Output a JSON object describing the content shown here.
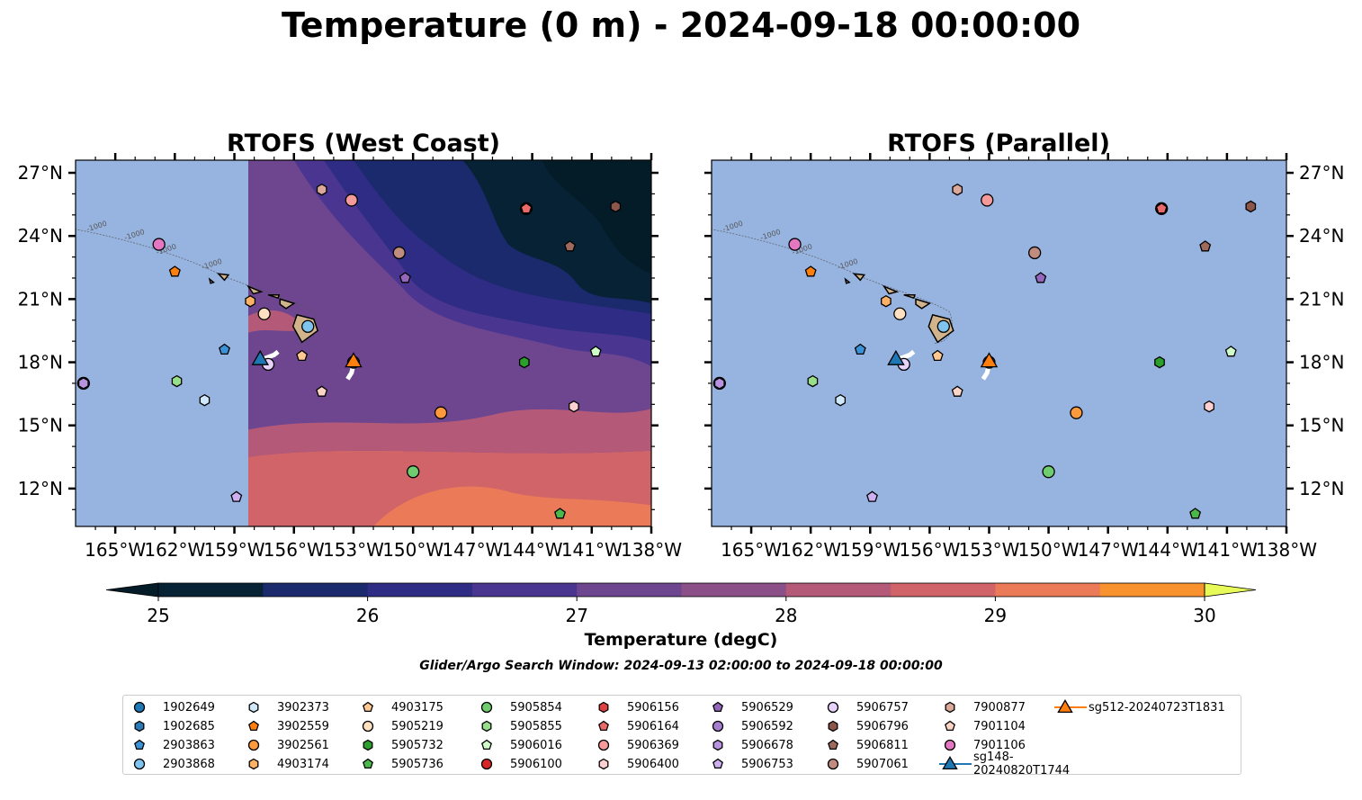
{
  "title": "Temperature (0 m) - 2024-09-18 00:00:00",
  "panels": [
    {
      "title": "RTOFS (West Coast)",
      "has_field": true
    },
    {
      "title": "RTOFS (Parallel)",
      "has_field": false
    }
  ],
  "x_ticks": [
    "165°W",
    "162°W",
    "159°W",
    "156°W",
    "153°W",
    "150°W",
    "147°W",
    "144°W",
    "141°W",
    "138°W"
  ],
  "y_ticks": [
    "27°N",
    "24°N",
    "21°N",
    "18°N",
    "15°N",
    "12°N"
  ],
  "colorbar": {
    "ticks": [
      "25",
      "26",
      "27",
      "28",
      "29",
      "30"
    ],
    "label": "Temperature (degC)",
    "levels": [
      25,
      25.5,
      26,
      26.5,
      27,
      27.5,
      28,
      28.5,
      29,
      29.5,
      30
    ],
    "colors": [
      "#062234",
      "#1a2a6c",
      "#2e2c84",
      "#4a3690",
      "#6e4690",
      "#8c5088",
      "#b45a78",
      "#d06468",
      "#ea7a58",
      "#f8922e",
      "#fbc240"
    ],
    "under_color": "#041c28",
    "over_color": "#e8fa5a"
  },
  "search_window": "Glider/Argo Search Window: 2024-09-13 02:00:00 to 2024-09-18 00:00:00",
  "contour_labels": [
    "-1000",
    "-1000",
    "-1000",
    "-1000"
  ],
  "chart_data": {
    "type": "map-scatter",
    "xlim": [
      -167.0,
      -138.0
    ],
    "ylim": [
      10.2,
      27.6
    ],
    "projection": "PlateCarree",
    "field": "Temperature (0 m)",
    "points": [
      {
        "id": "1902649",
        "lon": -153.0,
        "lat": 18.0
      },
      {
        "id": "1902685",
        "lon": -155.3,
        "lat": 19.7
      },
      {
        "id": "2903863",
        "lon": -159.5,
        "lat": 18.6
      },
      {
        "id": "2903868",
        "lon": -155.3,
        "lat": 19.7
      },
      {
        "id": "3902373",
        "lon": -160.5,
        "lat": 16.2
      },
      {
        "id": "3902559",
        "lon": -162.0,
        "lat": 22.3
      },
      {
        "id": "3902561",
        "lon": -148.6,
        "lat": 15.6
      },
      {
        "id": "4903174",
        "lon": -158.2,
        "lat": 20.9
      },
      {
        "id": "4903175",
        "lon": -155.6,
        "lat": 18.3
      },
      {
        "id": "5905219",
        "lon": -157.5,
        "lat": 20.3
      },
      {
        "id": "5905732",
        "lon": -144.4,
        "lat": 18.0
      },
      {
        "id": "5905736",
        "lon": -142.6,
        "lat": 10.8
      },
      {
        "id": "5905854",
        "lon": -150.0,
        "lat": 12.8
      },
      {
        "id": "5905855",
        "lon": -161.9,
        "lat": 17.1
      },
      {
        "id": "5906016",
        "lon": -140.8,
        "lat": 18.5
      },
      {
        "id": "5906100",
        "lon": -144.3,
        "lat": 25.3
      },
      {
        "id": "5906156",
        "lon": -144.3,
        "lat": 25.3
      },
      {
        "id": "5906164",
        "lon": -144.3,
        "lat": 25.3
      },
      {
        "id": "5906369",
        "lon": -153.1,
        "lat": 25.7
      },
      {
        "id": "5906400",
        "lon": -141.9,
        "lat": 15.9
      },
      {
        "id": "5906529",
        "lon": -150.4,
        "lat": 22.0
      },
      {
        "id": "5906592",
        "lon": -166.6,
        "lat": 17.0
      },
      {
        "id": "5906678",
        "lon": -166.6,
        "lat": 17.0
      },
      {
        "id": "5906753",
        "lon": -158.9,
        "lat": 11.6
      },
      {
        "id": "5906757",
        "lon": -157.3,
        "lat": 17.9
      },
      {
        "id": "5906796",
        "lon": -139.8,
        "lat": 25.4
      },
      {
        "id": "5906811",
        "lon": -142.1,
        "lat": 23.5
      },
      {
        "id": "5907061",
        "lon": -150.7,
        "lat": 23.2
      },
      {
        "id": "7900877",
        "lon": -154.6,
        "lat": 26.2
      },
      {
        "id": "7901104",
        "lon": -154.6,
        "lat": 16.6
      },
      {
        "id": "7901106",
        "lon": -162.8,
        "lat": 23.6
      },
      {
        "id": "sg148-20240820T1744",
        "lon": -157.7,
        "lat": 18.1
      },
      {
        "id": "sg512-20240723T1831",
        "lon": -153.0,
        "lat": 18.0
      }
    ]
  },
  "legend": [
    {
      "label": "1902649",
      "marker": "circle",
      "color": "#1f77b4"
    },
    {
      "label": "1902685",
      "marker": "hexagon",
      "color": "#2a7ab8"
    },
    {
      "label": "2903863",
      "marker": "pentagon",
      "color": "#3b92d6"
    },
    {
      "label": "2903868",
      "marker": "circle",
      "color": "#7ec4ee"
    },
    {
      "label": "3902373",
      "marker": "hexagon",
      "color": "#cfe8fa"
    },
    {
      "label": "3902559",
      "marker": "pentagon",
      "color": "#ff7f0e"
    },
    {
      "label": "3902561",
      "marker": "circle",
      "color": "#ff9a3c"
    },
    {
      "label": "4903174",
      "marker": "hexagon",
      "color": "#ffb266"
    },
    {
      "label": "4903175",
      "marker": "pentagon",
      "color": "#ffc991"
    },
    {
      "label": "5905219",
      "marker": "circle",
      "color": "#ffe0c0"
    },
    {
      "label": "5905732",
      "marker": "hexagon",
      "color": "#2ca02c"
    },
    {
      "label": "5905736",
      "marker": "pentagon",
      "color": "#4cb84c"
    },
    {
      "label": "5905854",
      "marker": "circle",
      "color": "#6fcc6f"
    },
    {
      "label": "5905855",
      "marker": "hexagon",
      "color": "#98df8a"
    },
    {
      "label": "5906016",
      "marker": "pentagon",
      "color": "#cffcc8"
    },
    {
      "label": "5906100",
      "marker": "circle",
      "color": "#d62728"
    },
    {
      "label": "5906156",
      "marker": "hexagon",
      "color": "#e04040"
    },
    {
      "label": "5906164",
      "marker": "pentagon",
      "color": "#ea6a6a"
    },
    {
      "label": "5906369",
      "marker": "circle",
      "color": "#f59a9a"
    },
    {
      "label": "5906400",
      "marker": "hexagon",
      "color": "#fcd0d0"
    },
    {
      "label": "5906529",
      "marker": "pentagon",
      "color": "#9467bd"
    },
    {
      "label": "5906592",
      "marker": "circle",
      "color": "#a57ed0"
    },
    {
      "label": "5906678",
      "marker": "hexagon",
      "color": "#b894e0"
    },
    {
      "label": "5906753",
      "marker": "pentagon",
      "color": "#ccb0f0"
    },
    {
      "label": "5906757",
      "marker": "circle",
      "color": "#e6d2fb"
    },
    {
      "label": "5906796",
      "marker": "hexagon",
      "color": "#8c564b"
    },
    {
      "label": "5906811",
      "marker": "pentagon",
      "color": "#9e6a5e"
    },
    {
      "label": "5907061",
      "marker": "circle",
      "color": "#c08c7f"
    },
    {
      "label": "7900877",
      "marker": "hexagon",
      "color": "#dca89c"
    },
    {
      "label": "7901104",
      "marker": "pentagon",
      "color": "#fcd5c6"
    },
    {
      "label": "7901106",
      "marker": "circle",
      "color": "#e377c2"
    },
    {
      "label": "sg148-20240820T1744",
      "marker": "triangle",
      "color": "#1f77b4"
    },
    {
      "label": "sg512-20240723T1831",
      "marker": "triangle",
      "color": "#ff7f0e"
    }
  ],
  "colors": {
    "ocean": "#97b4e0",
    "land": "#d2b48c"
  }
}
